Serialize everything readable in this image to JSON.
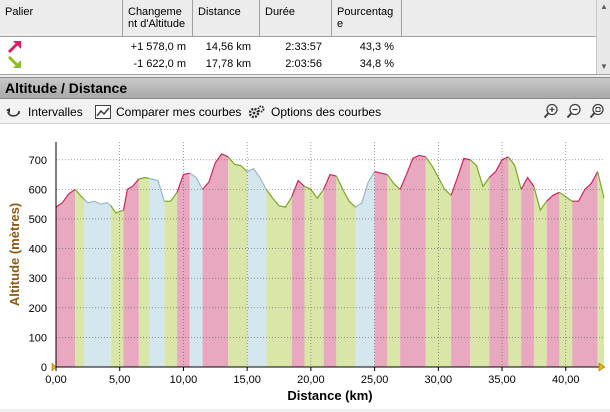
{
  "stats_table": {
    "headers": [
      "Palier",
      "Changeme nt d'Altitude",
      "Distance",
      "Durée",
      "Pourcentag e"
    ],
    "rows": [
      {
        "icon": "arrow-up-right-pink-icon",
        "altitude": "+1 578,0 m",
        "distance": "14,56 km",
        "duration": "2:33:57",
        "percent": "43,3 %"
      },
      {
        "icon": "arrow-down-right-green-icon",
        "altitude": "-1 622,0 m",
        "distance": "17,78 km",
        "duration": "2:03:56",
        "percent": "34,8 %"
      }
    ]
  },
  "panel": {
    "title": "Altitude / Distance"
  },
  "toolbar": {
    "intervals_label": "Intervalles",
    "compare_label": "Comparer mes courbes",
    "options_label": "Options des courbes"
  },
  "colors": {
    "ascent": "#e8a8c0",
    "descent": "#d8e6a8",
    "flat": "#d4e6ee",
    "ascent_line": "#c8285a",
    "descent_line": "#7aa828",
    "axis_label": "#8a5a10"
  },
  "chart_data": {
    "type": "area",
    "xlabel": "Distance (km)",
    "ylabel": "Altitude (mètres)",
    "xlim": [
      0,
      43
    ],
    "ylim": [
      0,
      760
    ],
    "x_ticks": [
      "0,00",
      "5,00",
      "10,00",
      "15,00",
      "20,00",
      "25,00",
      "30,00",
      "35,00",
      "40,00"
    ],
    "y_ticks": [
      "0",
      "100",
      "200",
      "300",
      "400",
      "500",
      "600",
      "700"
    ],
    "grid": true,
    "series": [
      {
        "x": [
          0,
          0.5,
          1.0,
          1.5,
          2.0,
          2.5,
          3.0,
          3.5,
          4.0,
          4.3,
          4.7,
          5.0,
          5.3,
          5.6,
          6.0,
          6.5,
          7.0,
          7.5,
          8.0,
          8.5,
          9.0,
          9.5,
          10.0,
          10.5,
          11.0,
          11.5,
          12.0,
          12.5,
          13.0,
          13.5,
          14.0,
          14.5,
          15.0,
          15.5,
          16.0,
          16.5,
          17.0,
          17.5,
          18.0,
          18.5,
          19.0,
          19.5,
          20.0,
          20.5,
          21.0,
          21.5,
          22.0,
          22.5,
          23.0,
          23.5,
          24.0,
          24.5,
          25.0,
          25.5,
          26.0,
          26.5,
          27.0,
          27.5,
          28.0,
          28.5,
          29.0,
          29.5,
          30.0,
          30.5,
          31.0,
          31.5,
          32.0,
          32.5,
          33.0,
          33.5,
          34.0,
          34.5,
          35.0,
          35.5,
          36.0,
          36.5,
          37.0,
          37.5,
          38.0,
          38.5,
          39.0,
          39.5,
          40.0,
          40.5,
          41.0,
          41.5,
          42.0,
          42.5,
          43.0
        ],
        "y": [
          540,
          555,
          585,
          600,
          575,
          555,
          560,
          550,
          555,
          545,
          520,
          525,
          530,
          600,
          610,
          635,
          640,
          635,
          630,
          560,
          560,
          590,
          650,
          655,
          640,
          600,
          625,
          690,
          720,
          710,
          685,
          680,
          660,
          670,
          640,
          600,
          570,
          545,
          540,
          575,
          630,
          610,
          600,
          570,
          600,
          650,
          645,
          600,
          560,
          540,
          555,
          625,
          660,
          655,
          650,
          620,
          600,
          650,
          705,
          715,
          710,
          680,
          640,
          600,
          580,
          640,
          705,
          700,
          680,
          610,
          640,
          660,
          700,
          710,
          680,
          600,
          640,
          610,
          530,
          560,
          580,
          590,
          575,
          560,
          560,
          600,
          620,
          660,
          570
        ],
        "segments": [
          {
            "from": 0,
            "to": 1.5,
            "kind": "ascent"
          },
          {
            "from": 1.5,
            "to": 2.2,
            "kind": "descent"
          },
          {
            "from": 2.2,
            "to": 4.3,
            "kind": "flat"
          },
          {
            "from": 4.3,
            "to": 5.3,
            "kind": "descent"
          },
          {
            "from": 5.3,
            "to": 6.5,
            "kind": "ascent"
          },
          {
            "from": 6.5,
            "to": 7.3,
            "kind": "descent"
          },
          {
            "from": 7.3,
            "to": 8.5,
            "kind": "flat"
          },
          {
            "from": 8.5,
            "to": 9.5,
            "kind": "descent"
          },
          {
            "from": 9.5,
            "to": 10.5,
            "kind": "ascent"
          },
          {
            "from": 10.5,
            "to": 11.5,
            "kind": "flat"
          },
          {
            "from": 11.5,
            "to": 13.5,
            "kind": "ascent"
          },
          {
            "from": 13.5,
            "to": 15.0,
            "kind": "descent"
          },
          {
            "from": 15.0,
            "to": 16.5,
            "kind": "flat"
          },
          {
            "from": 16.5,
            "to": 18.5,
            "kind": "descent"
          },
          {
            "from": 18.5,
            "to": 19.5,
            "kind": "ascent"
          },
          {
            "from": 19.5,
            "to": 21.0,
            "kind": "descent"
          },
          {
            "from": 21.0,
            "to": 22.0,
            "kind": "ascent"
          },
          {
            "from": 22.0,
            "to": 23.5,
            "kind": "descent"
          },
          {
            "from": 23.5,
            "to": 25.0,
            "kind": "flat"
          },
          {
            "from": 25.0,
            "to": 26.0,
            "kind": "ascent"
          },
          {
            "from": 26.0,
            "to": 27.0,
            "kind": "descent"
          },
          {
            "from": 27.0,
            "to": 29.0,
            "kind": "ascent"
          },
          {
            "from": 29.0,
            "to": 31.0,
            "kind": "descent"
          },
          {
            "from": 31.0,
            "to": 32.5,
            "kind": "ascent"
          },
          {
            "from": 32.5,
            "to": 34.0,
            "kind": "descent"
          },
          {
            "from": 34.0,
            "to": 35.5,
            "kind": "ascent"
          },
          {
            "from": 35.5,
            "to": 36.5,
            "kind": "descent"
          },
          {
            "from": 36.5,
            "to": 37.5,
            "kind": "ascent"
          },
          {
            "from": 37.5,
            "to": 38.5,
            "kind": "descent"
          },
          {
            "from": 38.5,
            "to": 39.5,
            "kind": "ascent"
          },
          {
            "from": 39.5,
            "to": 40.5,
            "kind": "descent"
          },
          {
            "from": 40.5,
            "to": 42.5,
            "kind": "ascent"
          },
          {
            "from": 42.5,
            "to": 43.0,
            "kind": "descent"
          }
        ]
      }
    ]
  }
}
